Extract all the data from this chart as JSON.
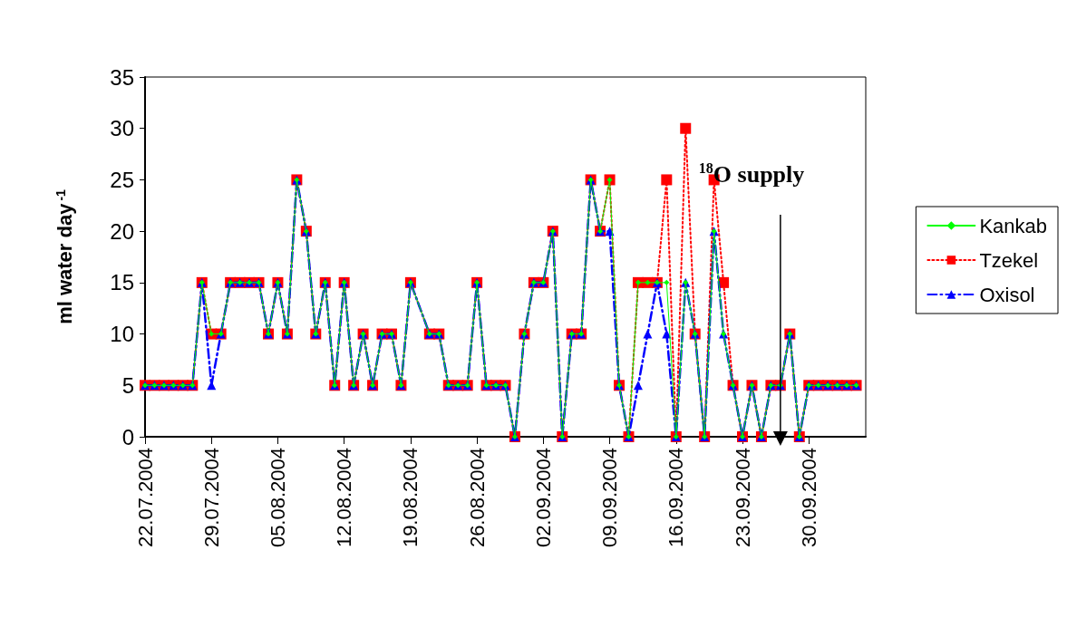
{
  "chart_data": {
    "type": "line",
    "ylabel": "ml water day$^{-1}$",
    "x": [
      "2004-07-22",
      "2004-07-23",
      "2004-07-24",
      "2004-07-25",
      "2004-07-26",
      "2004-07-27",
      "2004-07-28",
      "2004-07-29",
      "2004-07-30",
      "2004-07-31",
      "2004-08-01",
      "2004-08-02",
      "2004-08-03",
      "2004-08-04",
      "2004-08-05",
      "2004-08-06",
      "2004-08-07",
      "2004-08-08",
      "2004-08-09",
      "2004-08-10",
      "2004-08-11",
      "2004-08-12",
      "2004-08-13",
      "2004-08-14",
      "2004-08-15",
      "2004-08-16",
      "2004-08-17",
      "2004-08-18",
      "2004-08-19",
      "2004-08-21",
      "2004-08-22",
      "2004-08-23",
      "2004-08-24",
      "2004-08-25",
      "2004-08-26",
      "2004-08-27",
      "2004-08-28",
      "2004-08-29",
      "2004-08-30",
      "2004-08-31",
      "2004-09-01",
      "2004-09-02",
      "2004-09-03",
      "2004-09-04",
      "2004-09-05",
      "2004-09-06",
      "2004-09-07",
      "2004-09-08",
      "2004-09-09",
      "2004-09-10",
      "2004-09-11",
      "2004-09-12",
      "2004-09-13",
      "2004-09-14",
      "2004-09-15",
      "2004-09-16",
      "2004-09-17",
      "2004-09-18",
      "2004-09-19",
      "2004-09-20",
      "2004-09-21",
      "2004-09-22",
      "2004-09-23",
      "2004-09-24",
      "2004-09-25",
      "2004-09-26",
      "2004-09-27",
      "2004-09-28",
      "2004-09-29",
      "2004-09-30",
      "2004-10-01",
      "2004-10-02",
      "2004-10-03",
      "2004-10-04",
      "2004-10-05"
    ],
    "series": [
      {
        "name": "Kankab",
        "color": "#00ff00",
        "marker": "diamond",
        "line_style": "solid",
        "values": [
          5,
          5,
          5,
          5,
          5,
          5,
          15,
          10,
          10,
          15,
          15,
          15,
          15,
          10,
          15,
          10,
          25,
          20,
          10,
          15,
          5,
          15,
          5,
          10,
          5,
          10,
          10,
          5,
          15,
          10,
          10,
          5,
          5,
          5,
          15,
          5,
          5,
          5,
          0,
          10,
          15,
          15,
          20,
          0,
          10,
          10,
          25,
          20,
          25,
          5,
          0,
          15,
          15,
          15,
          15,
          0,
          15,
          10,
          0,
          20,
          10,
          5,
          0,
          5,
          0,
          5,
          5,
          10,
          0,
          5,
          5,
          5,
          5,
          5,
          5
        ]
      },
      {
        "name": "Tzekel",
        "color": "#ff0000",
        "marker": "square",
        "line_style": "dotted",
        "values": [
          5,
          5,
          5,
          5,
          5,
          5,
          15,
          10,
          10,
          15,
          15,
          15,
          15,
          10,
          15,
          10,
          25,
          20,
          10,
          15,
          5,
          15,
          5,
          10,
          5,
          10,
          10,
          5,
          15,
          10,
          10,
          5,
          5,
          5,
          15,
          5,
          5,
          5,
          0,
          10,
          15,
          15,
          20,
          0,
          10,
          10,
          25,
          20,
          25,
          5,
          0,
          15,
          15,
          15,
          25,
          0,
          30,
          10,
          0,
          25,
          15,
          5,
          0,
          5,
          0,
          5,
          5,
          10,
          0,
          5,
          5,
          5,
          5,
          5,
          5
        ]
      },
      {
        "name": "Oxisol",
        "color": "#0000ff",
        "marker": "triangle",
        "line_style": "dashdot",
        "values": [
          5,
          5,
          5,
          5,
          5,
          5,
          15,
          5,
          10,
          15,
          15,
          15,
          15,
          10,
          15,
          10,
          25,
          20,
          10,
          15,
          5,
          15,
          5,
          10,
          5,
          10,
          10,
          5,
          15,
          10,
          10,
          5,
          5,
          5,
          15,
          5,
          5,
          5,
          0,
          10,
          15,
          15,
          20,
          0,
          10,
          10,
          25,
          20,
          20,
          5,
          0,
          5,
          10,
          15,
          10,
          0,
          15,
          10,
          0,
          20,
          10,
          5,
          0,
          5,
          0,
          5,
          5,
          10,
          0,
          5,
          5,
          5,
          5,
          5,
          5
        ]
      }
    ],
    "xlim": [
      "2004-07-22",
      "2004-10-06"
    ],
    "xticks": [
      {
        "value": "2004-07-22",
        "label": "22.07.2004"
      },
      {
        "value": "2004-07-29",
        "label": "29.07.2004"
      },
      {
        "value": "2004-08-05",
        "label": "05.08.2004"
      },
      {
        "value": "2004-08-12",
        "label": "12.08.2004"
      },
      {
        "value": "2004-08-19",
        "label": "19.08.2004"
      },
      {
        "value": "2004-08-26",
        "label": "26.08.2004"
      },
      {
        "value": "2004-09-02",
        "label": "02.09.2004"
      },
      {
        "value": "2004-09-09",
        "label": "09.09.2004"
      },
      {
        "value": "2004-09-16",
        "label": "16.09.2004"
      },
      {
        "value": "2004-09-23",
        "label": "23.09.2004"
      },
      {
        "value": "2004-09-30",
        "label": "30.09.2004"
      }
    ],
    "ylim": [
      0,
      35
    ],
    "yticks": [
      0,
      5,
      10,
      15,
      20,
      25,
      30,
      35
    ],
    "annotations": [
      {
        "text": "$^{18}$O supply",
        "x": "2004-09-27",
        "y": 0
      }
    ],
    "grid": false,
    "legend": "right"
  }
}
